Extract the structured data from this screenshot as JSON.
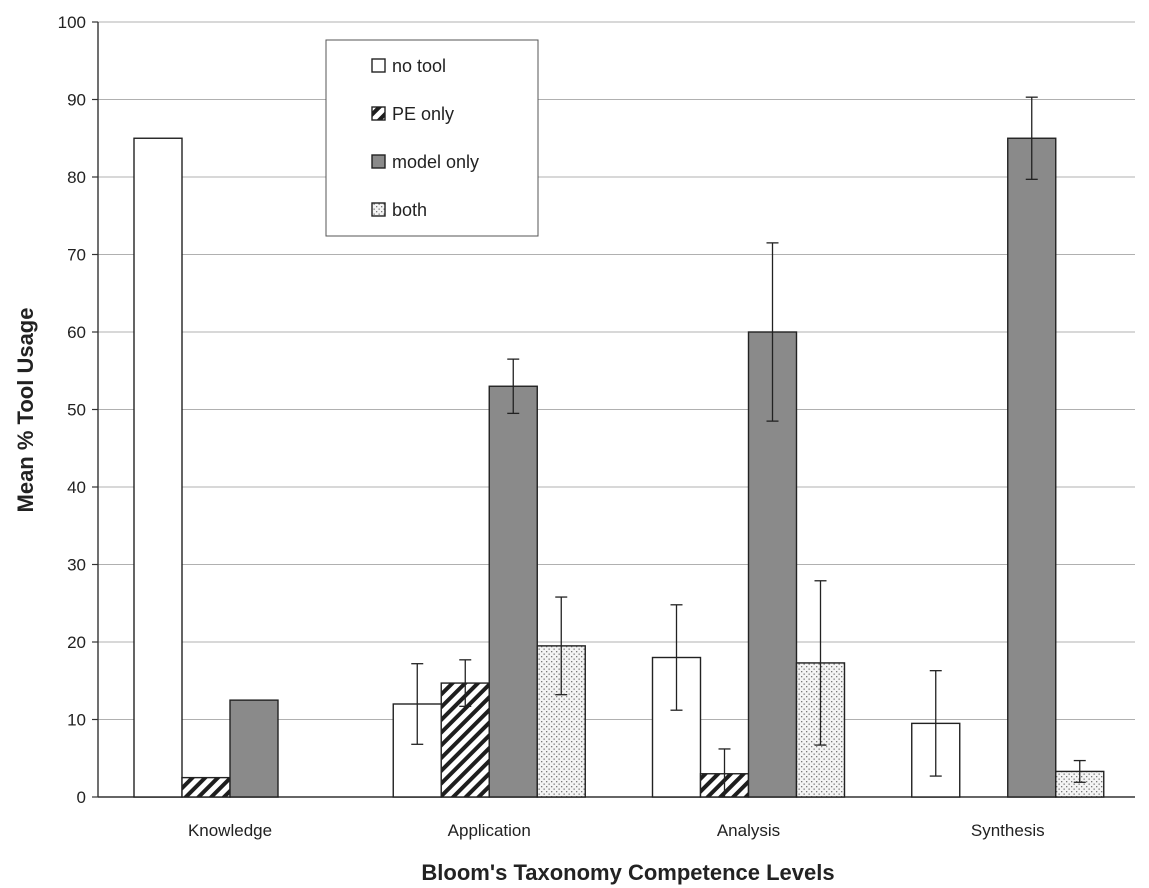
{
  "chart_data": {
    "type": "bar",
    "title": "",
    "xlabel": "Bloom's Taxonomy Competence Levels",
    "ylabel": "Mean % Tool Usage",
    "ylim": [
      0,
      100
    ],
    "yticks": [
      0,
      10,
      20,
      30,
      40,
      50,
      60,
      70,
      80,
      90,
      100
    ],
    "categories": [
      "Knowledge",
      "Application",
      "Analysis",
      "Synthesis"
    ],
    "grid": true,
    "legend_position": "top-center",
    "series": [
      {
        "name": "no tool",
        "pattern": "white",
        "values": [
          85,
          12,
          18,
          9.5
        ],
        "error": [
          null,
          5.2,
          6.8,
          6.8
        ]
      },
      {
        "name": "PE only",
        "pattern": "hatched",
        "values": [
          2.5,
          14.7,
          3,
          0
        ],
        "error": [
          null,
          3,
          3.2,
          null
        ]
      },
      {
        "name": "model only",
        "pattern": "gray",
        "values": [
          12.5,
          53,
          60,
          85
        ],
        "error": [
          null,
          3.5,
          11.5,
          5.3
        ]
      },
      {
        "name": "both",
        "pattern": "dotted",
        "values": [
          0,
          19.5,
          17.3,
          3.3
        ],
        "error": [
          null,
          6.3,
          10.6,
          1.4
        ]
      }
    ],
    "colors": {
      "gray_bar": "#8a8a8a",
      "outline": "#222222",
      "grid": "#b0b0b0"
    }
  }
}
